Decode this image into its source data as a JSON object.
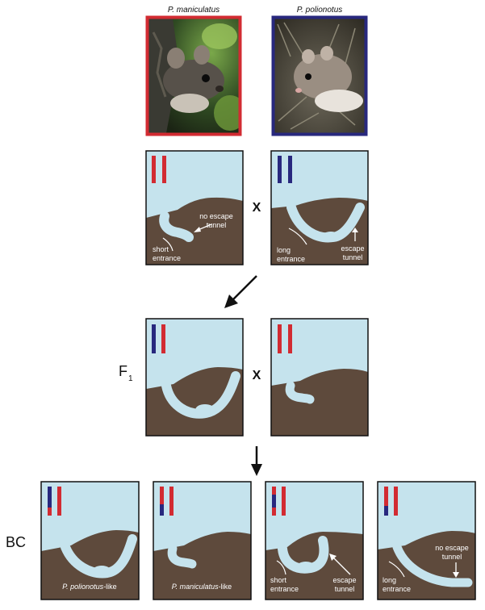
{
  "species": {
    "left": "P. maniculatus",
    "right": "P. polionotus"
  },
  "operators": {
    "cross": "X"
  },
  "generations": {
    "f1": "F",
    "f1_sub": "1",
    "bc": "BC"
  },
  "annotations": {
    "no_escape_line1": "no escape",
    "no_escape_line2": "tunnel",
    "short_line1": "short",
    "short_line2": "entrance",
    "long_line1": "long",
    "long_line2": "entrance",
    "escape_line1": "escape",
    "escape_line2": "tunnel"
  },
  "bc_labels": {
    "polionotus_like_italic": "P. polionotus",
    "polionotus_like_suffix": "-like",
    "maniculatus_like_italic": "P. maniculatus",
    "maniculatus_like_suffix": "-like"
  },
  "colors": {
    "sky": "#c5e3ed",
    "soil": "#5e4a3c",
    "maniculatus_red": "#d22b32",
    "polionotus_blue": "#28287e",
    "arrow": "#111111"
  }
}
